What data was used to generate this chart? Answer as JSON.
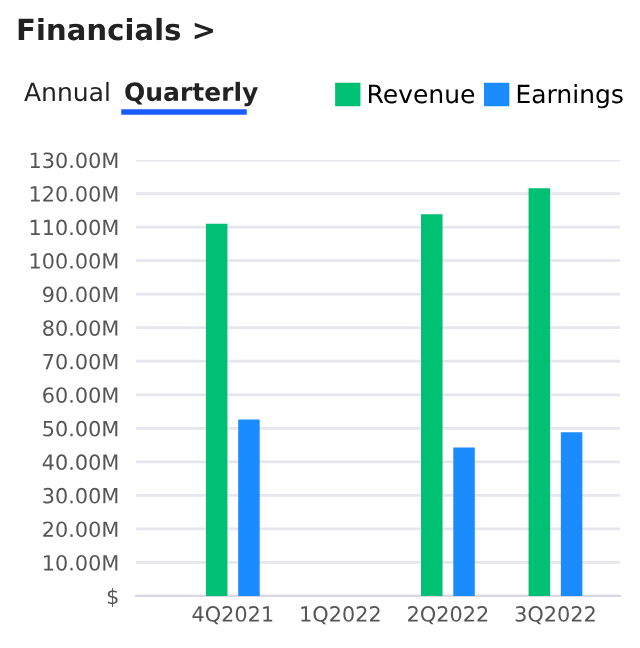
{
  "chart_data": {
    "type": "bar",
    "title": "Financials >",
    "annotations": [
      "Annual",
      "Quarterly"
    ],
    "categories": [
      "4Q2021",
      "1Q2022",
      "2Q2022",
      "3Q2022"
    ],
    "series": [
      {
        "name": "Revenue",
        "color": "#00c073",
        "values": [
          111.0,
          null,
          113.8,
          121.6
        ]
      },
      {
        "name": "Earnings",
        "color": "#1a8cff",
        "values": [
          52.6,
          null,
          44.3,
          48.8
        ]
      }
    ],
    "ylim": [
      0,
      130
    ],
    "yticks": [
      {
        "value": 0,
        "label": "$"
      },
      {
        "value": 10,
        "label": "10.00M"
      },
      {
        "value": 20,
        "label": "20.00M"
      },
      {
        "value": 30,
        "label": "30.00M"
      },
      {
        "value": 40,
        "label": "40.00M"
      },
      {
        "value": 50,
        "label": "50.00M"
      },
      {
        "value": 60,
        "label": "60.00M"
      },
      {
        "value": 70,
        "label": "70.00M"
      },
      {
        "value": 80,
        "label": "80.00M"
      },
      {
        "value": 90,
        "label": "90.00M"
      },
      {
        "value": 100,
        "label": "100.00M"
      },
      {
        "value": 110,
        "label": "110.00M"
      },
      {
        "value": 120,
        "label": "120.00M"
      },
      {
        "value": 130,
        "label": "130.00M"
      }
    ],
    "grid": "y",
    "legend": "top right"
  }
}
